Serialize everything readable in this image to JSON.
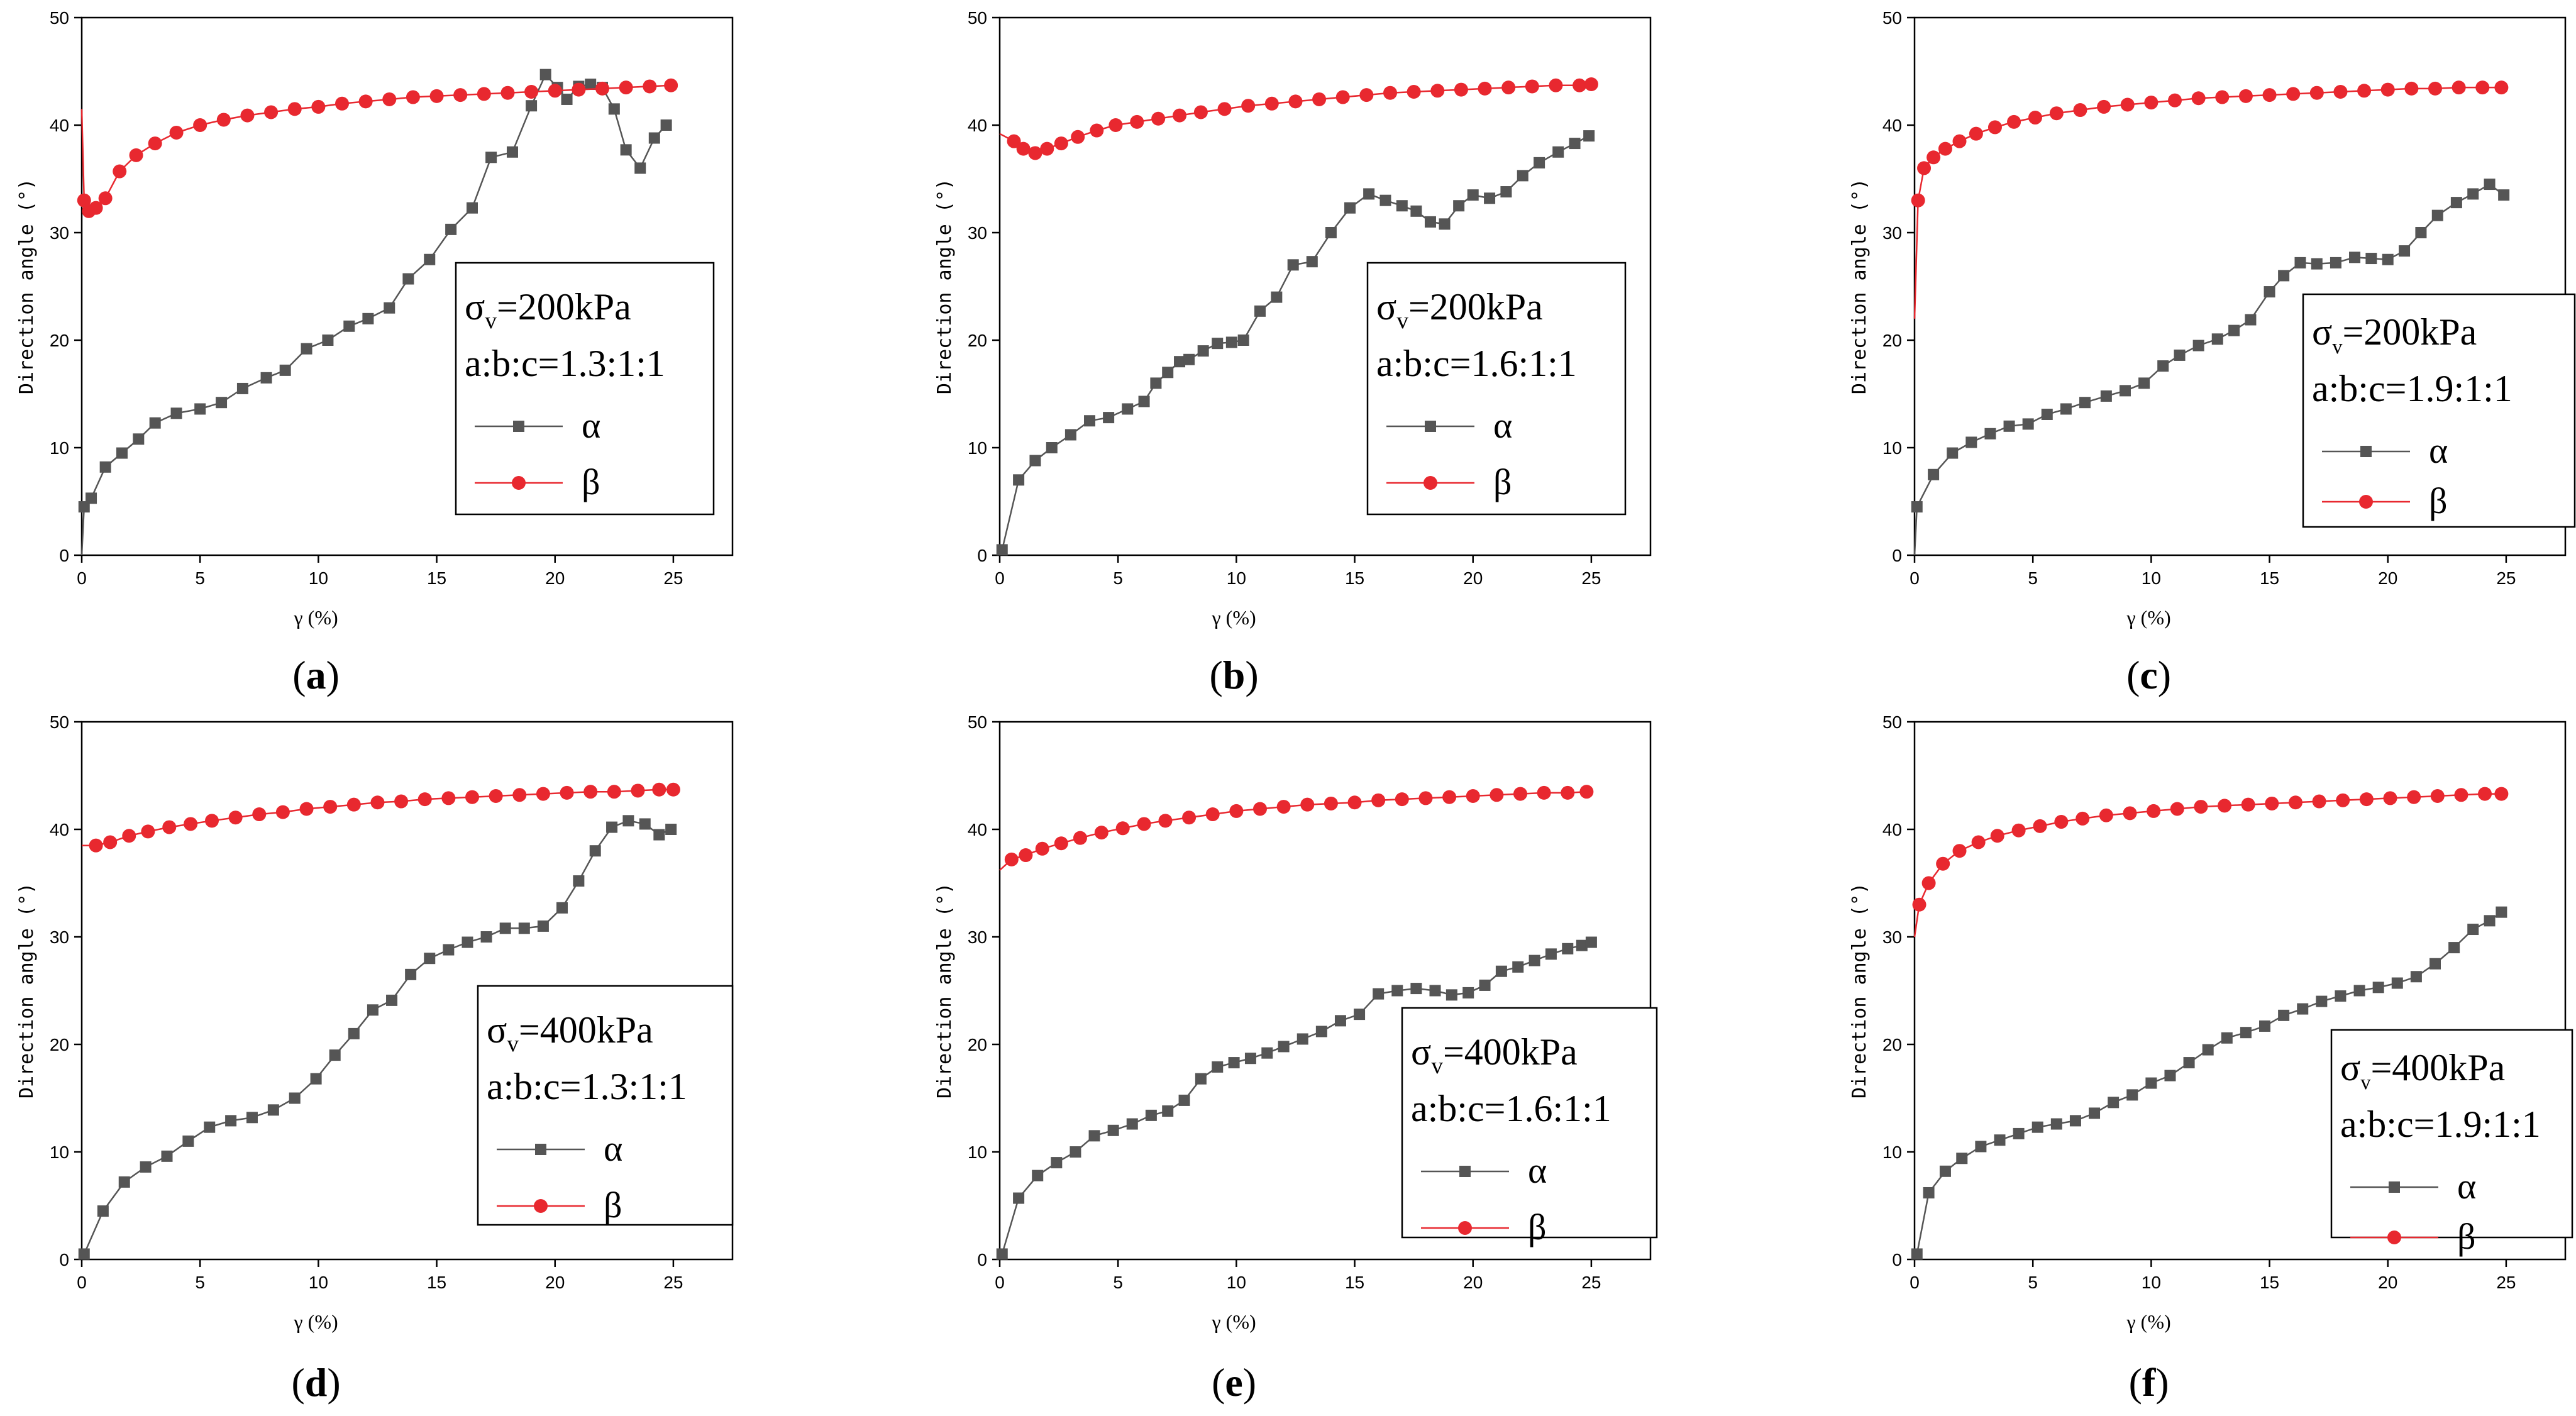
{
  "figure": {
    "panels": [
      "a",
      "b",
      "c",
      "d",
      "e",
      "f"
    ]
  },
  "chart_data": [
    {
      "label": "a",
      "type": "line",
      "xlabel": "γ (%)",
      "ylabel": "Direction angle (°)",
      "xlim": [
        0,
        27.5
      ],
      "ylim": [
        0,
        50
      ],
      "xticks": [
        0,
        5,
        10,
        15,
        20,
        25
      ],
      "yticks": [
        0,
        10,
        20,
        30,
        40,
        50
      ],
      "legend": {
        "stress": "σv=200kPa",
        "stress_symbol": "σ",
        "stress_sub": "v",
        "stress_rest": "=200kPa",
        "ratio": "a:b:c=1.3:1:1",
        "position": "center-right"
      },
      "series": [
        {
          "name": "α",
          "color": "#555555",
          "marker": "square",
          "x": [
            0,
            0.1,
            0.4,
            1,
            1.7,
            2.4,
            3.1,
            4,
            5,
            5.9,
            6.8,
            7.8,
            8.6,
            9.5,
            10.4,
            11.3,
            12.1,
            13,
            13.8,
            14.7,
            15.6,
            16.5,
            17.3,
            18.2,
            19,
            19.6,
            20.1,
            20.5,
            21,
            21.5,
            22,
            22.5,
            23,
            23.6,
            24.2,
            24.7
          ],
          "y": [
            0,
            4.5,
            5.3,
            8.2,
            9.5,
            10.8,
            12.3,
            13.2,
            13.6,
            14.2,
            15.5,
            16.5,
            17.2,
            19.2,
            20,
            21.3,
            22,
            23,
            25.7,
            27.5,
            30.3,
            32.3,
            37,
            37.5,
            41.8,
            44.7,
            43.5,
            42.4,
            43.6,
            43.8,
            43.5,
            41.5,
            37.7,
            36,
            38.8,
            40
          ]
        },
        {
          "name": "β",
          "color": "#e8282f",
          "marker": "circle",
          "x": [
            0,
            0.1,
            0.3,
            0.6,
            1.0,
            1.6,
            2.3,
            3.1,
            4.0,
            5.0,
            6.0,
            7.0,
            8.0,
            9.0,
            10.0,
            11.0,
            12.0,
            13.0,
            14.0,
            15.0,
            16.0,
            17.0,
            18.0,
            19.0,
            20.0,
            21.0,
            22.0,
            23.0,
            24.0,
            24.9
          ],
          "y": [
            41.5,
            33,
            32,
            32.3,
            33.2,
            35.7,
            37.2,
            38.3,
            39.3,
            40,
            40.5,
            40.9,
            41.2,
            41.5,
            41.7,
            42,
            42.2,
            42.4,
            42.6,
            42.7,
            42.8,
            42.9,
            43,
            43.1,
            43.2,
            43.3,
            43.4,
            43.5,
            43.6,
            43.7
          ]
        }
      ]
    },
    {
      "label": "b",
      "type": "line",
      "xlabel": "γ (%)",
      "ylabel": "Direction angle (°)",
      "xlim": [
        0,
        27.5
      ],
      "ylim": [
        0,
        50
      ],
      "xticks": [
        0,
        5,
        10,
        15,
        20,
        25
      ],
      "yticks": [
        0,
        10,
        20,
        30,
        40,
        50
      ],
      "legend": {
        "stress": "σv=200kPa",
        "stress_symbol": "σ",
        "stress_sub": "v",
        "stress_rest": "=200kPa",
        "ratio": "a:b:c=1.6:1:1",
        "position": "center-right"
      },
      "series": [
        {
          "name": "α",
          "color": "#555555",
          "marker": "square",
          "x": [
            0,
            0.1,
            0.8,
            1.5,
            2.2,
            3,
            3.8,
            4.6,
            5.4,
            6.1,
            6.6,
            7.1,
            7.6,
            8,
            8.6,
            9.2,
            9.8,
            10.3,
            11,
            11.7,
            12.4,
            13.2,
            14,
            14.8,
            15.6,
            16.3,
            17,
            17.6,
            18.2,
            18.8,
            19.4,
            20,
            20.7,
            21.4,
            22.1,
            22.8,
            23.6,
            24.3,
            24.9
          ],
          "y": [
            0,
            0.5,
            7,
            8.8,
            10,
            11.2,
            12.5,
            12.8,
            13.6,
            14.3,
            16,
            17,
            18,
            18.2,
            19,
            19.7,
            19.8,
            20,
            22.7,
            24,
            27,
            27.3,
            30,
            32.3,
            33.6,
            33,
            32.5,
            32,
            31,
            30.8,
            32.5,
            33.5,
            33.2,
            33.8,
            35.3,
            36.5,
            37.5,
            38.3,
            39
          ]
        },
        {
          "name": "β",
          "color": "#e8282f",
          "marker": "circle",
          "x": [
            0,
            0.6,
            1.0,
            1.5,
            2.0,
            2.6,
            3.3,
            4.1,
            4.9,
            5.8,
            6.7,
            7.6,
            8.5,
            9.5,
            10.5,
            11.5,
            12.5,
            13.5,
            14.5,
            15.5,
            16.5,
            17.5,
            18.5,
            19.5,
            20.5,
            21.5,
            22.5,
            23.5,
            24.5,
            25
          ],
          "y": [
            39.2,
            38.5,
            37.8,
            37.4,
            37.8,
            38.3,
            38.9,
            39.5,
            40,
            40.3,
            40.6,
            40.9,
            41.2,
            41.5,
            41.8,
            42,
            42.2,
            42.4,
            42.6,
            42.8,
            43,
            43.1,
            43.2,
            43.3,
            43.4,
            43.5,
            43.6,
            43.7,
            43.7,
            43.8
          ]
        }
      ]
    },
    {
      "label": "c",
      "type": "line",
      "xlabel": "γ (%)",
      "ylabel": "Direction angle (°)",
      "xlim": [
        0,
        27.5
      ],
      "ylim": [
        0,
        50
      ],
      "xticks": [
        0,
        5,
        10,
        15,
        20,
        25
      ],
      "yticks": [
        0,
        10,
        20,
        30,
        40,
        50
      ],
      "legend": {
        "stress": "σv=200kPa",
        "stress_symbol": "σ",
        "stress_sub": "v",
        "stress_rest": "=200kPa",
        "ratio": "a:b:c=1.9:1:1",
        "position": "center-right"
      },
      "series": [
        {
          "name": "α",
          "color": "#555555",
          "marker": "square",
          "x": [
            0,
            0.1,
            0.8,
            1.6,
            2.4,
            3.2,
            4.0,
            4.8,
            5.6,
            6.4,
            7.2,
            8.1,
            8.9,
            9.7,
            10.5,
            11.2,
            12,
            12.8,
            13.5,
            14.2,
            15,
            15.6,
            16.3,
            17,
            17.8,
            18.6,
            19.3,
            20,
            20.7,
            21.4,
            22.1,
            22.9,
            23.6,
            24.3,
            24.9
          ],
          "y": [
            0,
            4.5,
            7.5,
            9.5,
            10.5,
            11.3,
            12,
            12.2,
            13.1,
            13.6,
            14.2,
            14.8,
            15.3,
            16,
            17.6,
            18.6,
            19.5,
            20.1,
            20.9,
            21.9,
            24.5,
            26,
            27.2,
            27.1,
            27.2,
            27.7,
            27.6,
            27.5,
            28.3,
            30,
            31.6,
            32.8,
            33.6,
            34.5,
            33.5
          ]
        },
        {
          "name": "β",
          "color": "#e8282f",
          "marker": "circle",
          "x": [
            0,
            0.15,
            0.4,
            0.8,
            1.3,
            1.9,
            2.6,
            3.4,
            4.2,
            5.1,
            6.0,
            7.0,
            8.0,
            9.0,
            10.0,
            11.0,
            12.0,
            13.0,
            14.0,
            15.0,
            16.0,
            17.0,
            18.0,
            19.0,
            20.0,
            21.0,
            22.0,
            23.0,
            24.0,
            24.8
          ],
          "y": [
            22,
            33,
            36,
            37,
            37.8,
            38.5,
            39.2,
            39.8,
            40.3,
            40.7,
            41.1,
            41.4,
            41.7,
            41.9,
            42.1,
            42.3,
            42.5,
            42.6,
            42.7,
            42.8,
            42.9,
            43,
            43.1,
            43.2,
            43.3,
            43.4,
            43.4,
            43.5,
            43.5,
            43.5
          ]
        }
      ]
    },
    {
      "label": "d",
      "type": "line",
      "xlabel": "γ (%)",
      "ylabel": "Direction angle (°)",
      "xlim": [
        0,
        27.5
      ],
      "ylim": [
        0,
        50
      ],
      "xticks": [
        0,
        5,
        10,
        15,
        20,
        25
      ],
      "yticks": [
        0,
        10,
        20,
        30,
        40,
        50
      ],
      "legend": {
        "stress": "σv=400kPa",
        "stress_symbol": "σ",
        "stress_sub": "v",
        "stress_rest": "=400kPa",
        "ratio": "a:b:c=1.3:1:1",
        "position": "center-right"
      },
      "series": [
        {
          "name": "α",
          "color": "#555555",
          "marker": "square",
          "x": [
            0,
            0.1,
            0.9,
            1.8,
            2.7,
            3.6,
            4.5,
            5.4,
            6.3,
            7.2,
            8.1,
            9.0,
            9.9,
            10.7,
            11.5,
            12.3,
            13.1,
            13.9,
            14.7,
            15.5,
            16.3,
            17.1,
            17.9,
            18.7,
            19.5,
            20.3,
            21,
            21.7,
            22.4,
            23.1,
            23.8,
            24.4,
            24.9
          ],
          "y": [
            0,
            0.5,
            4.5,
            7.2,
            8.6,
            9.6,
            11,
            12.3,
            12.9,
            13.2,
            13.9,
            15,
            16.8,
            19,
            21,
            23.2,
            24.1,
            26.5,
            28,
            28.8,
            29.5,
            30,
            30.8,
            30.8,
            31,
            32.7,
            35.2,
            38,
            40.2,
            40.8,
            40.5,
            39.5,
            40
          ]
        },
        {
          "name": "β",
          "color": "#e8282f",
          "marker": "circle",
          "x": [
            0,
            0.6,
            1.2,
            2.0,
            2.8,
            3.7,
            4.6,
            5.5,
            6.5,
            7.5,
            8.5,
            9.5,
            10.5,
            11.5,
            12.5,
            13.5,
            14.5,
            15.5,
            16.5,
            17.5,
            18.5,
            19.5,
            20.5,
            21.5,
            22.5,
            23.5,
            24.4,
            25
          ],
          "y": [
            38.5,
            38.5,
            38.8,
            39.4,
            39.8,
            40.2,
            40.5,
            40.8,
            41.1,
            41.4,
            41.6,
            41.9,
            42.1,
            42.3,
            42.5,
            42.6,
            42.8,
            42.9,
            43,
            43.1,
            43.2,
            43.3,
            43.4,
            43.5,
            43.5,
            43.6,
            43.7,
            43.7
          ]
        }
      ]
    },
    {
      "label": "e",
      "type": "line",
      "xlabel": "γ (%)",
      "ylabel": "Direction angle (°)",
      "xlim": [
        0,
        27.5
      ],
      "ylim": [
        0,
        50
      ],
      "xticks": [
        0,
        5,
        10,
        15,
        20,
        25
      ],
      "yticks": [
        0,
        10,
        20,
        30,
        40,
        50
      ],
      "legend": {
        "stress": "σv=400kPa",
        "stress_symbol": "σ",
        "stress_sub": "v",
        "stress_rest": "=400kPa",
        "ratio": "a:b:c=1.6:1:1",
        "position": "center-right"
      },
      "series": [
        {
          "name": "α",
          "color": "#555555",
          "marker": "square",
          "x": [
            0,
            0.1,
            0.8,
            1.6,
            2.4,
            3.2,
            4.0,
            4.8,
            5.6,
            6.4,
            7.1,
            7.8,
            8.5,
            9.2,
            9.9,
            10.6,
            11.3,
            12,
            12.8,
            13.6,
            14.4,
            15.2,
            16,
            16.8,
            17.6,
            18.4,
            19.1,
            19.8,
            20.5,
            21.2,
            21.9,
            22.6,
            23.3,
            24,
            24.6,
            25
          ],
          "y": [
            0,
            0.5,
            5.7,
            7.8,
            9,
            10,
            11.5,
            12,
            12.6,
            13.4,
            13.8,
            14.8,
            16.8,
            17.9,
            18.3,
            18.7,
            19.2,
            19.8,
            20.5,
            21.2,
            22.2,
            22.8,
            24.7,
            25,
            25.2,
            25,
            24.6,
            24.8,
            25.5,
            26.8,
            27.2,
            27.8,
            28.4,
            28.9,
            29.2,
            29.5
          ]
        },
        {
          "name": "β",
          "color": "#e8282f",
          "marker": "circle",
          "x": [
            0,
            0.5,
            1.1,
            1.8,
            2.6,
            3.4,
            4.3,
            5.2,
            6.1,
            7.0,
            8.0,
            9.0,
            10.0,
            11.0,
            12.0,
            13.0,
            14.0,
            15.0,
            16.0,
            17.0,
            18.0,
            19.0,
            20.0,
            21.0,
            22.0,
            23.0,
            24.0,
            24.8
          ],
          "y": [
            36.2,
            37.2,
            37.6,
            38.2,
            38.7,
            39.2,
            39.7,
            40.1,
            40.5,
            40.8,
            41.1,
            41.4,
            41.7,
            41.9,
            42.1,
            42.3,
            42.4,
            42.5,
            42.7,
            42.8,
            42.9,
            43,
            43.1,
            43.2,
            43.3,
            43.4,
            43.4,
            43.5
          ]
        }
      ]
    },
    {
      "label": "f",
      "type": "line",
      "xlabel": "γ (%)",
      "ylabel": "Direction angle (°)",
      "xlim": [
        0,
        27.5
      ],
      "ylim": [
        0,
        50
      ],
      "xticks": [
        0,
        5,
        10,
        15,
        20,
        25
      ],
      "yticks": [
        0,
        10,
        20,
        30,
        40,
        50
      ],
      "legend": {
        "stress": "σv=400kPa",
        "stress_symbol": "σ",
        "stress_sub": "v",
        "stress_rest": "=400kPa",
        "ratio": "a:b:c=1.9:1:1",
        "position": "center-right"
      },
      "series": [
        {
          "name": "α",
          "color": "#555555",
          "marker": "square",
          "x": [
            0,
            0.1,
            0.6,
            1.3,
            2.0,
            2.8,
            3.6,
            4.4,
            5.2,
            6.0,
            6.8,
            7.6,
            8.4,
            9.2,
            10.0,
            10.8,
            11.6,
            12.4,
            13.2,
            14.0,
            14.8,
            15.6,
            16.4,
            17.2,
            18.0,
            18.8,
            19.6,
            20.4,
            21.2,
            22,
            22.8,
            23.6,
            24.3,
            24.8
          ],
          "y": [
            0,
            0.5,
            6.2,
            8.2,
            9.4,
            10.5,
            11.1,
            11.7,
            12.3,
            12.6,
            12.9,
            13.6,
            14.6,
            15.3,
            16.4,
            17.1,
            18.3,
            19.5,
            20.6,
            21.1,
            21.7,
            22.7,
            23.3,
            24,
            24.5,
            25,
            25.3,
            25.7,
            26.3,
            27.5,
            29,
            30.7,
            31.5,
            32.3
          ]
        },
        {
          "name": "β",
          "color": "#e8282f",
          "marker": "circle",
          "x": [
            0,
            0.2,
            0.6,
            1.2,
            1.9,
            2.7,
            3.5,
            4.4,
            5.3,
            6.2,
            7.1,
            8.1,
            9.1,
            10.1,
            11.1,
            12.1,
            13.1,
            14.1,
            15.1,
            16.1,
            17.1,
            18.1,
            19.1,
            20.1,
            21.1,
            22.1,
            23.1,
            24.1,
            24.8
          ],
          "y": [
            30,
            33,
            35,
            36.8,
            38,
            38.8,
            39.4,
            39.9,
            40.3,
            40.7,
            41,
            41.3,
            41.5,
            41.7,
            41.9,
            42.1,
            42.2,
            42.3,
            42.4,
            42.5,
            42.6,
            42.7,
            42.8,
            42.9,
            43,
            43.1,
            43.2,
            43.3,
            43.3
          ]
        }
      ]
    }
  ]
}
